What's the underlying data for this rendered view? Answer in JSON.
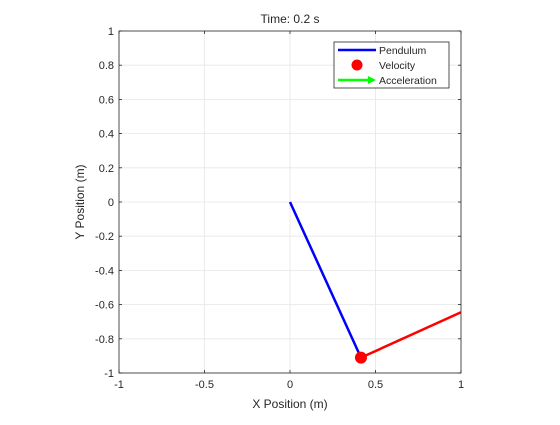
{
  "chart_data": {
    "type": "line",
    "title": "Time: 0.2 s",
    "xlabel": "X Position (m)",
    "ylabel": "Y Position (m)",
    "xlim": [
      -1,
      1
    ],
    "ylim": [
      -1,
      1
    ],
    "grid": true,
    "legend_position": "top-right",
    "x_ticks": [
      -1,
      -0.5,
      0,
      0.5,
      1
    ],
    "x_tick_labels": [
      "-1",
      "-0.5",
      "0",
      "0.5",
      "1"
    ],
    "y_ticks": [
      -1,
      -0.8,
      -0.6,
      -0.4,
      -0.2,
      0,
      0.2,
      0.4,
      0.6,
      0.8,
      1
    ],
    "y_tick_labels": [
      "-1",
      "-0.8",
      "-0.6",
      "-0.4",
      "-0.2",
      "0",
      "0.2",
      "0.4",
      "0.6",
      "0.8",
      "1"
    ],
    "series": [
      {
        "name": "Pendulum",
        "kind": "line",
        "color": "#0000ff",
        "x": [
          0,
          0.415
        ],
        "y": [
          0,
          -0.91
        ]
      },
      {
        "name": "Velocity",
        "kind": "marker",
        "color": "#ff0000",
        "x": [
          0.415
        ],
        "y": [
          -0.91
        ]
      },
      {
        "name": "Acceleration",
        "kind": "arrow",
        "color": "#00ff00",
        "x": [],
        "y": []
      },
      {
        "name": "",
        "kind": "line",
        "color": "#ff0000",
        "x": [
          0.415,
          1
        ],
        "y": [
          -0.91,
          -0.645
        ]
      }
    ]
  }
}
